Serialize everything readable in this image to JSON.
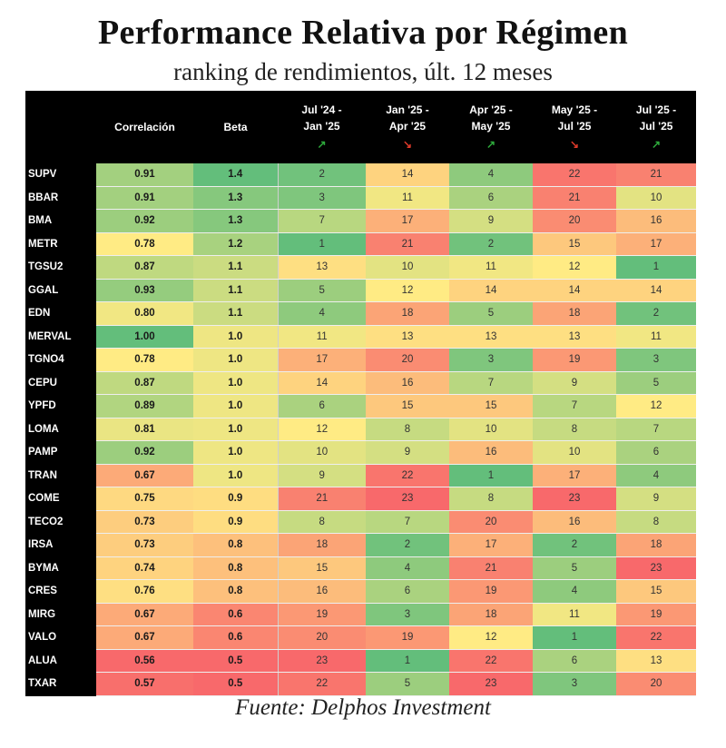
{
  "chart_data": {
    "type": "table",
    "title": "Performance Relativa por Régimen",
    "subtitle": "ranking de rendimientos, últ. 12 meses",
    "source": "Fuente: Delphos Investment",
    "columns": [
      {
        "key": "corr",
        "line1": "Correlación",
        "line2": "",
        "arrow": null
      },
      {
        "key": "beta",
        "line1": "Beta",
        "line2": "",
        "arrow": null
      },
      {
        "key": "p1",
        "line1": "Jul '24 -",
        "line2": "Jan '25",
        "arrow": "up"
      },
      {
        "key": "p2",
        "line1": "Jan '25 -",
        "line2": "Apr '25",
        "arrow": "down"
      },
      {
        "key": "p3",
        "line1": "Apr '25 -",
        "line2": "May '25",
        "arrow": "up"
      },
      {
        "key": "p4",
        "line1": "May '25 -",
        "line2": "Jul '25",
        "arrow": "down"
      },
      {
        "key": "p5",
        "line1": "Jul '25 -",
        "line2": "Jul '25",
        "arrow": "up"
      }
    ],
    "arrow_glyphs": {
      "up": "↗",
      "down": "↘"
    },
    "colors": {
      "green": "#63be7b",
      "yellow": "#ffeb84",
      "red": "#f8696b"
    },
    "rows": [
      {
        "ticker": "SUPV",
        "corr": "0.91",
        "beta": "1.4",
        "p1": 2,
        "p2": 14,
        "p3": 4,
        "p4": 22,
        "p5": 21
      },
      {
        "ticker": "BBAR",
        "corr": "0.91",
        "beta": "1.3",
        "p1": 3,
        "p2": 11,
        "p3": 6,
        "p4": 21,
        "p5": 10
      },
      {
        "ticker": "BMA",
        "corr": "0.92",
        "beta": "1.3",
        "p1": 7,
        "p2": 17,
        "p3": 9,
        "p4": 20,
        "p5": 16
      },
      {
        "ticker": "METR",
        "corr": "0.78",
        "beta": "1.2",
        "p1": 1,
        "p2": 21,
        "p3": 2,
        "p4": 15,
        "p5": 17
      },
      {
        "ticker": "TGSU2",
        "corr": "0.87",
        "beta": "1.1",
        "p1": 13,
        "p2": 10,
        "p3": 11,
        "p4": 12,
        "p5": 1
      },
      {
        "ticker": "GGAL",
        "corr": "0.93",
        "beta": "1.1",
        "p1": 5,
        "p2": 12,
        "p3": 14,
        "p4": 14,
        "p5": 14
      },
      {
        "ticker": "EDN",
        "corr": "0.80",
        "beta": "1.1",
        "p1": 4,
        "p2": 18,
        "p3": 5,
        "p4": 18,
        "p5": 2
      },
      {
        "ticker": "MERVAL",
        "corr": "1.00",
        "beta": "1.0",
        "p1": 11,
        "p2": 13,
        "p3": 13,
        "p4": 13,
        "p5": 11
      },
      {
        "ticker": "TGNO4",
        "corr": "0.78",
        "beta": "1.0",
        "p1": 17,
        "p2": 20,
        "p3": 3,
        "p4": 19,
        "p5": 3
      },
      {
        "ticker": "CEPU",
        "corr": "0.87",
        "beta": "1.0",
        "p1": 14,
        "p2": 16,
        "p3": 7,
        "p4": 9,
        "p5": 5
      },
      {
        "ticker": "YPFD",
        "corr": "0.89",
        "beta": "1.0",
        "p1": 6,
        "p2": 15,
        "p3": 15,
        "p4": 7,
        "p5": 12
      },
      {
        "ticker": "LOMA",
        "corr": "0.81",
        "beta": "1.0",
        "p1": 12,
        "p2": 8,
        "p3": 10,
        "p4": 8,
        "p5": 7
      },
      {
        "ticker": "PAMP",
        "corr": "0.92",
        "beta": "1.0",
        "p1": 10,
        "p2": 9,
        "p3": 16,
        "p4": 10,
        "p5": 6
      },
      {
        "ticker": "TRAN",
        "corr": "0.67",
        "beta": "1.0",
        "p1": 9,
        "p2": 22,
        "p3": 1,
        "p4": 17,
        "p5": 4
      },
      {
        "ticker": "COME",
        "corr": "0.75",
        "beta": "0.9",
        "p1": 21,
        "p2": 23,
        "p3": 8,
        "p4": 23,
        "p5": 9
      },
      {
        "ticker": "TECO2",
        "corr": "0.73",
        "beta": "0.9",
        "p1": 8,
        "p2": 7,
        "p3": 20,
        "p4": 16,
        "p5": 8
      },
      {
        "ticker": "IRSA",
        "corr": "0.73",
        "beta": "0.8",
        "p1": 18,
        "p2": 2,
        "p3": 17,
        "p4": 2,
        "p5": 18
      },
      {
        "ticker": "BYMA",
        "corr": "0.74",
        "beta": "0.8",
        "p1": 15,
        "p2": 4,
        "p3": 21,
        "p4": 5,
        "p5": 23
      },
      {
        "ticker": "CRES",
        "corr": "0.76",
        "beta": "0.8",
        "p1": 16,
        "p2": 6,
        "p3": 19,
        "p4": 4,
        "p5": 15
      },
      {
        "ticker": "MIRG",
        "corr": "0.67",
        "beta": "0.6",
        "p1": 19,
        "p2": 3,
        "p3": 18,
        "p4": 11,
        "p5": 19
      },
      {
        "ticker": "VALO",
        "corr": "0.67",
        "beta": "0.6",
        "p1": 20,
        "p2": 19,
        "p3": 12,
        "p4": 1,
        "p5": 22
      },
      {
        "ticker": "ALUA",
        "corr": "0.56",
        "beta": "0.5",
        "p1": 23,
        "p2": 1,
        "p3": 22,
        "p4": 6,
        "p5": 13
      },
      {
        "ticker": "TXAR",
        "corr": "0.57",
        "beta": "0.5",
        "p1": 22,
        "p2": 5,
        "p3": 23,
        "p4": 3,
        "p5": 20
      }
    ],
    "scales": {
      "corr": {
        "min": 0.56,
        "max": 1.0,
        "higher_is_green": true
      },
      "beta": {
        "min": 0.5,
        "max": 1.4,
        "higher_is_green": true
      },
      "rank": {
        "min": 1,
        "max": 23,
        "higher_is_green": false
      }
    }
  }
}
